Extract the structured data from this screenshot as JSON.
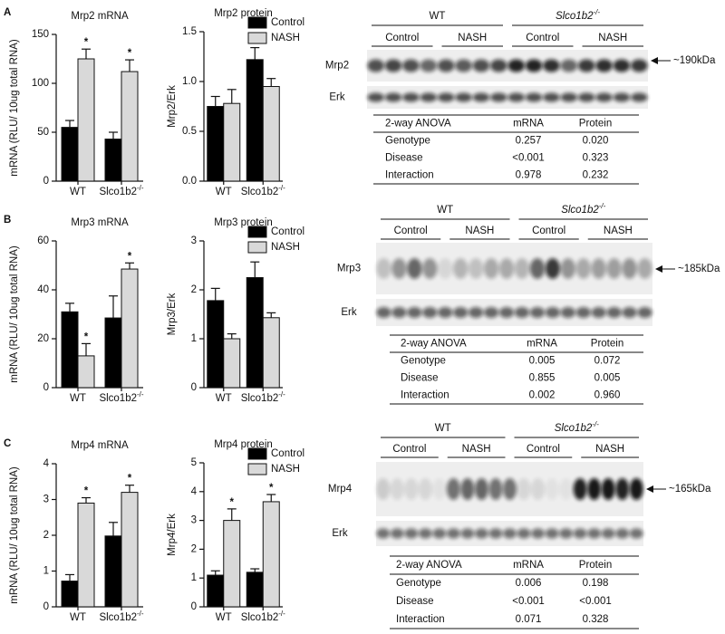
{
  "panels": [
    "A",
    "B",
    "C"
  ],
  "chart_data": [
    {
      "type": "bar",
      "title": "Mrp2 mRNA",
      "y_label": "mRNA (RLU/ 10ug total RNA)",
      "categories": [
        "WT",
        "Slco1b2"
      ],
      "category_superscripts": [
        null,
        "-/-"
      ],
      "ylim": [
        0,
        150
      ],
      "yticks": [
        0,
        50,
        100,
        150
      ],
      "series": [
        {
          "name": "Control",
          "color": "#000000",
          "values": [
            55,
            43
          ],
          "errors": [
            7,
            7
          ]
        },
        {
          "name": "NASH",
          "color": "#d9d9d9",
          "values": [
            125,
            112
          ],
          "errors": [
            10,
            12
          ],
          "significance": [
            "*",
            "*"
          ]
        }
      ]
    },
    {
      "type": "bar",
      "title": "Mrp2 protein",
      "y_label": "Mrp2/Erk",
      "legend": "upper right",
      "categories": [
        "WT",
        "Slco1b2"
      ],
      "category_superscripts": [
        null,
        "-/-"
      ],
      "ylim": [
        0,
        1.5
      ],
      "yticks": [
        {
          "value": 0,
          "label": "0.0"
        },
        {
          "value": 0.5,
          "label": "0.5"
        },
        {
          "value": 1,
          "label": "1.0"
        },
        {
          "value": 1.5,
          "label": "1.5"
        }
      ],
      "series": [
        {
          "name": "Control",
          "color": "#000000",
          "values": [
            0.75,
            1.22
          ],
          "errors": [
            0.1,
            0.12
          ]
        },
        {
          "name": "NASH",
          "color": "#d9d9d9",
          "values": [
            0.78,
            0.95
          ],
          "errors": [
            0.14,
            0.08
          ]
        }
      ]
    },
    {
      "type": "bar",
      "title": "Mrp3 mRNA",
      "y_label": "mRNA (RLU/ 10ug total RNA)",
      "categories": [
        "WT",
        "Slco1b2"
      ],
      "category_superscripts": [
        null,
        "-/-"
      ],
      "ylim": [
        0,
        60
      ],
      "yticks": [
        0,
        20,
        40,
        60
      ],
      "series": [
        {
          "name": "Control",
          "color": "#000000",
          "values": [
            31,
            28.5
          ],
          "errors": [
            3.5,
            9
          ]
        },
        {
          "name": "NASH",
          "color": "#d9d9d9",
          "values": [
            13,
            48.5
          ],
          "errors": [
            5,
            2.5
          ],
          "significance": [
            "*",
            "*"
          ]
        }
      ]
    },
    {
      "type": "bar",
      "title": "Mrp3 protein",
      "y_label": "Mrp3/Erk",
      "legend": "upper right",
      "categories": [
        "WT",
        "Slco1b2"
      ],
      "category_superscripts": [
        null,
        "-/-"
      ],
      "ylim": [
        0,
        3
      ],
      "yticks": [
        0,
        1,
        2,
        3
      ],
      "series": [
        {
          "name": "Control",
          "color": "#000000",
          "values": [
            1.78,
            2.25
          ],
          "errors": [
            0.25,
            0.32
          ]
        },
        {
          "name": "NASH",
          "color": "#d9d9d9",
          "values": [
            1.0,
            1.43
          ],
          "errors": [
            0.1,
            0.1
          ]
        }
      ]
    },
    {
      "type": "bar",
      "title": "Mrp4 mRNA",
      "y_label": "mRNA (RLU/ 10ug total RNA)",
      "categories": [
        "WT",
        "Slco1b2"
      ],
      "category_superscripts": [
        null,
        "-/-"
      ],
      "ylim": [
        0,
        4
      ],
      "yticks": [
        0,
        1,
        2,
        3,
        4
      ],
      "series": [
        {
          "name": "Control",
          "color": "#000000",
          "values": [
            0.72,
            1.98
          ],
          "errors": [
            0.18,
            0.38
          ]
        },
        {
          "name": "NASH",
          "color": "#d9d9d9",
          "values": [
            2.9,
            3.2
          ],
          "errors": [
            0.15,
            0.2
          ],
          "significance": [
            "*",
            "*"
          ]
        }
      ]
    },
    {
      "type": "bar",
      "title": "Mrp4 protein",
      "y_label": "Mrp4/Erk",
      "legend": "upper right",
      "categories": [
        "WT",
        "Slco1b2"
      ],
      "category_superscripts": [
        null,
        "-/-"
      ],
      "ylim": [
        0,
        5
      ],
      "yticks": [
        0,
        1,
        2,
        3,
        4,
        5
      ],
      "series": [
        {
          "name": "Control",
          "color": "#000000",
          "values": [
            1.1,
            1.2
          ],
          "errors": [
            0.15,
            0.12
          ]
        },
        {
          "name": "NASH",
          "color": "#d9d9d9",
          "values": [
            3.0,
            3.65
          ],
          "errors": [
            0.4,
            0.25
          ],
          "significance": [
            "*",
            "*"
          ]
        }
      ]
    }
  ],
  "blots": [
    {
      "groups": [
        "WT",
        "Slco1b2"
      ],
      "group_superscripts": [
        null,
        "-/-"
      ],
      "conditions": [
        "Control",
        "NASH",
        "Control",
        "NASH"
      ],
      "rows": [
        "Mrp2",
        "Erk"
      ],
      "size": "~190kDa",
      "table": {
        "header": [
          "2-way ANOVA",
          "mRNA",
          "Protein"
        ],
        "rows": [
          [
            "Genotype",
            "0.257",
            "0.020"
          ],
          [
            "Disease",
            "<0.001",
            "0.323"
          ],
          [
            "Interaction",
            "0.978",
            "0.232"
          ]
        ]
      }
    },
    {
      "groups": [
        "WT",
        "Slco1b2"
      ],
      "group_superscripts": [
        null,
        "-/-"
      ],
      "conditions": [
        "Control",
        "NASH",
        "Control",
        "NASH"
      ],
      "rows": [
        "Mrp3",
        "Erk"
      ],
      "size": "~185kDa",
      "table": {
        "header": [
          "2-way ANOVA",
          "mRNA",
          "Protein"
        ],
        "rows": [
          [
            "Genotype",
            "0.005",
            "0.072"
          ],
          [
            "Disease",
            "0.855",
            "0.005"
          ],
          [
            "Interaction",
            "0.002",
            "0.960"
          ]
        ]
      }
    },
    {
      "groups": [
        "WT",
        "Slco1b2"
      ],
      "group_superscripts": [
        null,
        "-/-"
      ],
      "conditions": [
        "Control",
        "NASH",
        "Control",
        "NASH"
      ],
      "rows": [
        "Mrp4",
        "Erk"
      ],
      "size": "~165kDa",
      "table": {
        "header": [
          "2-way ANOVA",
          "mRNA",
          "Protein"
        ],
        "rows": [
          [
            "Genotype",
            "0.006",
            "0.198"
          ],
          [
            "Disease",
            "<0.001",
            "<0.001"
          ],
          [
            "Interaction",
            "0.071",
            "0.328"
          ]
        ]
      }
    }
  ]
}
